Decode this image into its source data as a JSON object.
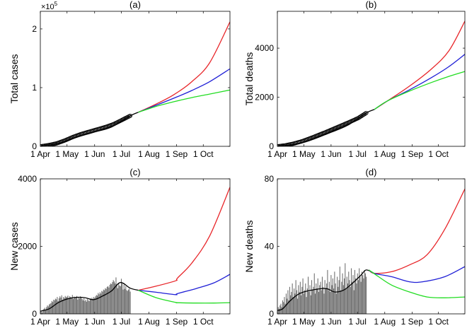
{
  "chart_data": [
    {
      "id": "a",
      "type": "line",
      "title": "(a)",
      "ylabel": "Total cases",
      "xlabel": "",
      "xlim": [
        0,
        213
      ],
      "ylim": [
        0,
        2.3
      ],
      "y_exponent_label": "×10",
      "y_exponent_power": "5",
      "xticks": [
        {
          "v": 0,
          "label": "1 Apr"
        },
        {
          "v": 30,
          "label": "1 May"
        },
        {
          "v": 61,
          "label": "1 Jun"
        },
        {
          "v": 91,
          "label": "1 Jul"
        },
        {
          "v": 122,
          "label": "1 Aug"
        },
        {
          "v": 153,
          "label": "1 Sep"
        },
        {
          "v": 183,
          "label": "1 Oct"
        }
      ],
      "yticks": [
        {
          "v": 0,
          "label": "0"
        },
        {
          "v": 1,
          "label": "1"
        },
        {
          "v": 2,
          "label": "2"
        }
      ],
      "observed": {
        "name": "Observed total cases",
        "x_start": 0,
        "x_end": 101,
        "values": [
          0.0,
          0.02,
          0.05,
          0.1,
          0.16,
          0.21,
          0.25,
          0.29,
          0.33,
          0.38,
          0.45,
          0.52
        ]
      },
      "series": [
        {
          "name": "fit",
          "color": "#000000",
          "points": [
            [
              0,
              0.0
            ],
            [
              20,
              0.05
            ],
            [
              40,
              0.15
            ],
            [
              60,
              0.24
            ],
            [
              80,
              0.33
            ],
            [
              101,
              0.52
            ],
            [
              110,
              0.58
            ]
          ]
        },
        {
          "name": "scenario-red",
          "color": "#e8262a",
          "points": [
            [
              110,
              0.58
            ],
            [
              130,
              0.72
            ],
            [
              150,
              0.88
            ],
            [
              170,
              1.1
            ],
            [
              190,
              1.42
            ],
            [
              213,
              2.12
            ]
          ]
        },
        {
          "name": "scenario-blue",
          "color": "#1f1fd6",
          "points": [
            [
              110,
              0.58
            ],
            [
              130,
              0.7
            ],
            [
              150,
              0.82
            ],
            [
              170,
              0.95
            ],
            [
              190,
              1.1
            ],
            [
              213,
              1.32
            ]
          ]
        },
        {
          "name": "scenario-green",
          "color": "#22dd22",
          "points": [
            [
              110,
              0.58
            ],
            [
              130,
              0.68
            ],
            [
              150,
              0.76
            ],
            [
              170,
              0.83
            ],
            [
              190,
              0.89
            ],
            [
              213,
              0.96
            ]
          ]
        }
      ]
    },
    {
      "id": "b",
      "type": "line",
      "title": "(b)",
      "ylabel": "Total deaths",
      "xlabel": "",
      "xlim": [
        0,
        213
      ],
      "ylim": [
        0,
        5500
      ],
      "xticks": [
        {
          "v": 0,
          "label": "1 Apr"
        },
        {
          "v": 30,
          "label": "1 May"
        },
        {
          "v": 61,
          "label": "1 Jun"
        },
        {
          "v": 91,
          "label": "1 Jul"
        },
        {
          "v": 122,
          "label": "1 Aug"
        },
        {
          "v": 153,
          "label": "1 Sep"
        },
        {
          "v": 183,
          "label": "1 Oct"
        }
      ],
      "yticks": [
        {
          "v": 0,
          "label": "0"
        },
        {
          "v": 2000,
          "label": "2000"
        },
        {
          "v": 4000,
          "label": "4000"
        }
      ],
      "observed": {
        "name": "Observed total deaths",
        "x_start": 0,
        "x_end": 101,
        "values": [
          0,
          40,
          110,
          200,
          320,
          450,
          580,
          720,
          860,
          1000,
          1150,
          1360
        ]
      },
      "series": [
        {
          "name": "fit",
          "color": "#000000",
          "points": [
            [
              0,
              0
            ],
            [
              30,
              160
            ],
            [
              60,
              560
            ],
            [
              80,
              860
            ],
            [
              101,
              1360
            ],
            [
              110,
              1500
            ]
          ]
        },
        {
          "name": "scenario-red",
          "color": "#e8262a",
          "points": [
            [
              110,
              1500
            ],
            [
              125,
              1850
            ],
            [
              150,
              2450
            ],
            [
              175,
              3150
            ],
            [
              195,
              3900
            ],
            [
              213,
              5100
            ]
          ]
        },
        {
          "name": "scenario-blue",
          "color": "#1f1fd6",
          "points": [
            [
              110,
              1500
            ],
            [
              125,
              1850
            ],
            [
              150,
              2300
            ],
            [
              175,
              2800
            ],
            [
              195,
              3250
            ],
            [
              213,
              3750
            ]
          ]
        },
        {
          "name": "scenario-green",
          "color": "#22dd22",
          "points": [
            [
              110,
              1500
            ],
            [
              125,
              1850
            ],
            [
              150,
              2250
            ],
            [
              175,
              2600
            ],
            [
              195,
              2850
            ],
            [
              213,
              3050
            ]
          ]
        }
      ]
    },
    {
      "id": "c",
      "type": "bar",
      "title": "(c)",
      "ylabel": "New cases",
      "xlabel": "",
      "xlim": [
        0,
        213
      ],
      "ylim": [
        0,
        4000
      ],
      "xticks": [
        {
          "v": 0,
          "label": "1 Apr"
        },
        {
          "v": 30,
          "label": "1 May"
        },
        {
          "v": 61,
          "label": "1 Jun"
        },
        {
          "v": 91,
          "label": "1 Jul"
        },
        {
          "v": 122,
          "label": "1 Aug"
        },
        {
          "v": 153,
          "label": "1 Sep"
        },
        {
          "v": 183,
          "label": "1 Oct"
        }
      ],
      "yticks": [
        {
          "v": 0,
          "label": "0"
        },
        {
          "v": 2000,
          "label": "2000"
        },
        {
          "v": 4000,
          "label": "4000"
        }
      ],
      "bars": {
        "name": "Observed daily new cases",
        "color": "#6e6e6e",
        "x_start": 0,
        "values": [
          60,
          90,
          40,
          120,
          150,
          180,
          100,
          200,
          250,
          220,
          280,
          300,
          320,
          380,
          350,
          420,
          400,
          450,
          430,
          500,
          380,
          460,
          520,
          480,
          550,
          420,
          500,
          470,
          530,
          490,
          510,
          540,
          460,
          520,
          500,
          480,
          560,
          440,
          510,
          470,
          490,
          530,
          420,
          500,
          460,
          520,
          480,
          440,
          400,
          460,
          380,
          420,
          360,
          440,
          400,
          380,
          460,
          420,
          480,
          440,
          500,
          470,
          520,
          560,
          540,
          620,
          580,
          640,
          600,
          680,
          660,
          720,
          700,
          760,
          740,
          800,
          820,
          780,
          860,
          900,
          880,
          940,
          1000,
          960,
          900,
          1080,
          880,
          760,
          920,
          840,
          820,
          1040,
          900,
          720,
          860,
          740,
          820,
          700,
          680,
          720,
          740,
          660
        ]
      },
      "series": [
        {
          "name": "fit",
          "color": "#000000",
          "points": [
            [
              0,
              80
            ],
            [
              10,
              150
            ],
            [
              20,
              330
            ],
            [
              30,
              440
            ],
            [
              40,
              490
            ],
            [
              50,
              480
            ],
            [
              60,
              420
            ],
            [
              70,
              530
            ],
            [
              80,
              680
            ],
            [
              90,
              930
            ],
            [
              101,
              760
            ],
            [
              110,
              700
            ]
          ]
        },
        {
          "name": "scenario-red",
          "color": "#e8262a",
          "points": [
            [
              110,
              700
            ],
            [
              130,
              820
            ],
            [
              152,
              980
            ],
            [
              154,
              1060
            ],
            [
              170,
              1500
            ],
            [
              190,
              2300
            ],
            [
              213,
              3750
            ]
          ]
        },
        {
          "name": "scenario-blue",
          "color": "#1f1fd6",
          "points": [
            [
              110,
              700
            ],
            [
              130,
              640
            ],
            [
              152,
              570
            ],
            [
              154,
              600
            ],
            [
              175,
              750
            ],
            [
              195,
              920
            ],
            [
              213,
              1170
            ]
          ]
        },
        {
          "name": "scenario-green",
          "color": "#22dd22",
          "points": [
            [
              110,
              700
            ],
            [
              130,
              480
            ],
            [
              152,
              340
            ],
            [
              154,
              330
            ],
            [
              175,
              320
            ],
            [
              195,
              320
            ],
            [
              213,
              330
            ]
          ]
        }
      ]
    },
    {
      "id": "d",
      "type": "bar",
      "title": "(d)",
      "ylabel": "New deaths",
      "xlabel": "",
      "xlim": [
        0,
        213
      ],
      "ylim": [
        0,
        80
      ],
      "xticks": [
        {
          "v": 0,
          "label": "1 Apr"
        },
        {
          "v": 30,
          "label": "1 May"
        },
        {
          "v": 61,
          "label": "1 Jun"
        },
        {
          "v": 91,
          "label": "1 Jul"
        },
        {
          "v": 122,
          "label": "1 Aug"
        },
        {
          "v": 153,
          "label": "1 Sep"
        },
        {
          "v": 183,
          "label": "1 Oct"
        }
      ],
      "yticks": [
        {
          "v": 0,
          "label": "0"
        },
        {
          "v": 40,
          "label": "40"
        },
        {
          "v": 80,
          "label": "80"
        }
      ],
      "bars": {
        "name": "Observed daily new deaths",
        "color": "#6e6e6e",
        "x_start": 0,
        "values": [
          2,
          4,
          3,
          5,
          6,
          4,
          8,
          7,
          10,
          6,
          12,
          9,
          14,
          8,
          16,
          11,
          13,
          18,
          10,
          15,
          12,
          20,
          14,
          9,
          17,
          13,
          19,
          11,
          16,
          21,
          12,
          14,
          18,
          10,
          15,
          22,
          13,
          17,
          11,
          20,
          14,
          16,
          24,
          12,
          18,
          15,
          21,
          13,
          17,
          19,
          14,
          22,
          16,
          12,
          20,
          15,
          18,
          26,
          14,
          19,
          13,
          23,
          17,
          21,
          15,
          25,
          18,
          12,
          22,
          16,
          20,
          28,
          14,
          19,
          24,
          17,
          21,
          30,
          15,
          22,
          18,
          25,
          20,
          16,
          27,
          19,
          23,
          14,
          26,
          21,
          18,
          24,
          20,
          27,
          22,
          19,
          25,
          23,
          21,
          26,
          24,
          22
        ]
      },
      "series": [
        {
          "name": "fit",
          "color": "#000000",
          "points": [
            [
              0,
              2
            ],
            [
              6,
              3
            ],
            [
              15,
              8
            ],
            [
              25,
              12
            ],
            [
              38,
              14
            ],
            [
              55,
              15
            ],
            [
              65,
              13
            ],
            [
              75,
              14
            ],
            [
              85,
              18
            ],
            [
              95,
              23
            ],
            [
              101,
              26
            ],
            [
              110,
              24
            ]
          ]
        },
        {
          "name": "scenario-red",
          "color": "#e8262a",
          "points": [
            [
              104,
              26
            ],
            [
              110,
              24
            ],
            [
              130,
              25
            ],
            [
              150,
              29
            ],
            [
              170,
              35
            ],
            [
              190,
              50
            ],
            [
              213,
              74
            ]
          ]
        },
        {
          "name": "scenario-blue",
          "color": "#1f1fd6",
          "points": [
            [
              104,
              26
            ],
            [
              110,
              24
            ],
            [
              130,
              22
            ],
            [
              150,
              19
            ],
            [
              165,
              19
            ],
            [
              190,
              22
            ],
            [
              213,
              28
            ]
          ]
        },
        {
          "name": "scenario-green",
          "color": "#22dd22",
          "points": [
            [
              104,
              26
            ],
            [
              115,
              22
            ],
            [
              130,
              17
            ],
            [
              150,
              13
            ],
            [
              170,
              10
            ],
            [
              190,
              9.5
            ],
            [
              213,
              10
            ]
          ]
        }
      ]
    }
  ]
}
